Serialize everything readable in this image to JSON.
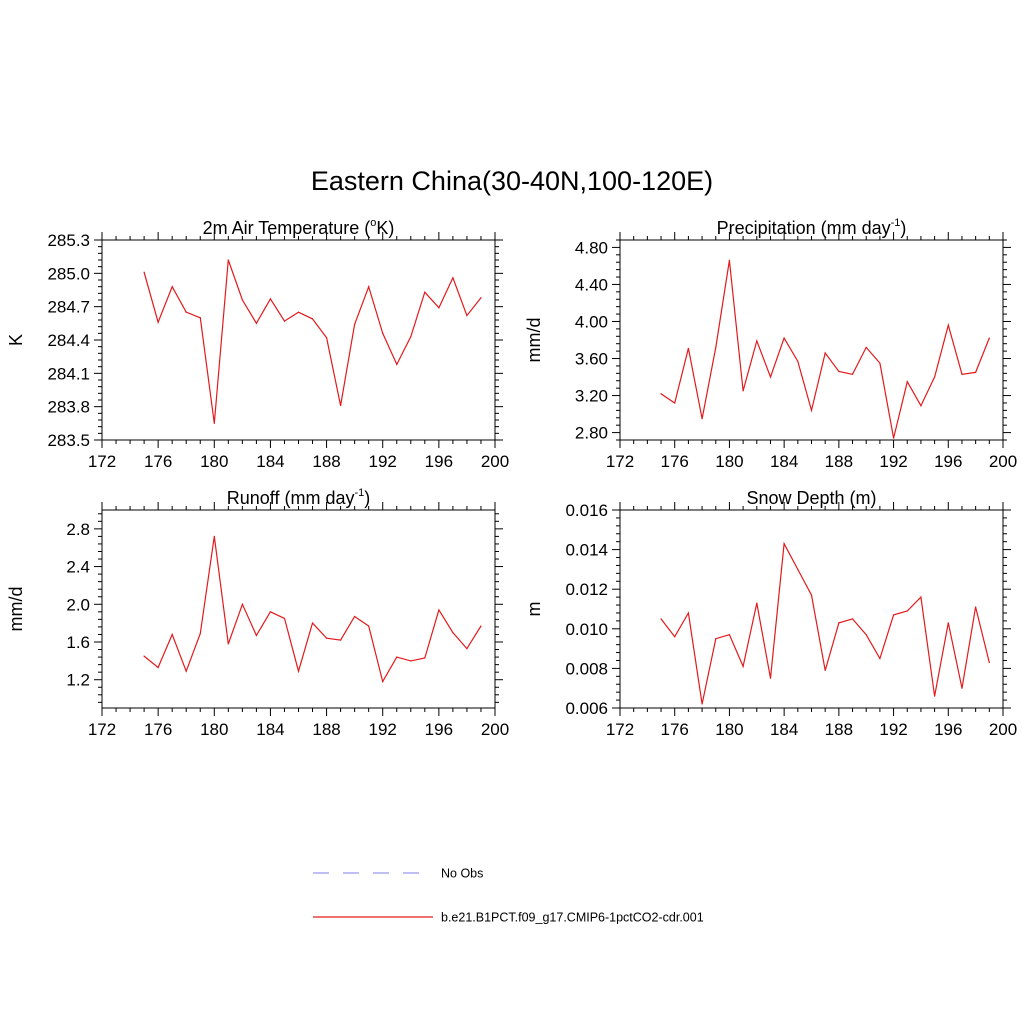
{
  "title": "Eastern China(30-40N,100-120E)",
  "line_color": "#e31a1c",
  "obs_color": "#9999ee",
  "legend": {
    "obs_label": "No Obs",
    "model_label": "b.e21.B1PCT.f09_g17.CMIP6-1pctCO2-cdr.001"
  },
  "chart_data": [
    {
      "type": "line",
      "title": "2m Air Temperature (",
      "title_sup": "o",
      "title_tail": "K)",
      "ylabel": "K",
      "xlim": [
        172,
        200
      ],
      "ylim": [
        283.5,
        285.3
      ],
      "xticks": [
        172,
        176,
        180,
        184,
        188,
        192,
        196,
        200
      ],
      "yticks": [
        "283.5",
        "283.8",
        "284.1",
        "284.4",
        "284.7",
        "285.0",
        "285.3"
      ],
      "x": [
        175,
        176,
        177,
        178,
        179,
        180,
        181,
        182,
        183,
        184,
        185,
        186,
        187,
        188,
        189,
        190,
        191,
        192,
        193,
        194,
        195,
        196,
        197,
        198,
        199
      ],
      "series": [
        {
          "values": [
            285.01,
            284.56,
            284.88,
            284.65,
            284.6,
            283.65,
            285.12,
            284.76,
            284.55,
            284.77,
            284.57,
            284.65,
            284.59,
            284.42,
            283.81,
            284.54,
            284.88,
            284.46,
            284.18,
            284.43,
            284.83,
            284.69,
            284.96,
            284.62,
            284.78
          ]
        }
      ]
    },
    {
      "type": "line",
      "title": "Precipitation (mm day",
      "title_sup": "-1",
      "title_tail": ")",
      "ylabel": "mm/d",
      "xlim": [
        172,
        200
      ],
      "ylim": [
        2.72,
        4.88
      ],
      "xticks": [
        172,
        176,
        180,
        184,
        188,
        192,
        196,
        200
      ],
      "yticks": [
        "2.80",
        "3.20",
        "3.60",
        "4.00",
        "4.40",
        "4.80"
      ],
      "x": [
        175,
        176,
        177,
        178,
        179,
        180,
        181,
        182,
        183,
        184,
        185,
        186,
        187,
        188,
        189,
        190,
        191,
        192,
        193,
        194,
        195,
        196,
        197,
        198,
        199
      ],
      "series": [
        {
          "values": [
            3.22,
            3.12,
            3.71,
            2.95,
            3.72,
            4.66,
            3.25,
            3.79,
            3.4,
            3.82,
            3.57,
            3.04,
            3.66,
            3.46,
            3.43,
            3.72,
            3.55,
            2.74,
            3.35,
            3.09,
            3.4,
            3.96,
            3.43,
            3.45,
            3.82
          ]
        }
      ]
    },
    {
      "type": "line",
      "title": "Runoff (mm day",
      "title_sup": "-1",
      "title_tail": ")",
      "ylabel": "mm/d",
      "xlim": [
        172,
        200
      ],
      "ylim": [
        0.9,
        3.0
      ],
      "xticks": [
        172,
        176,
        180,
        184,
        188,
        192,
        196,
        200
      ],
      "yticks": [
        "1.2",
        "1.6",
        "2.0",
        "2.4",
        "2.8"
      ],
      "x": [
        175,
        176,
        177,
        178,
        179,
        180,
        181,
        182,
        183,
        184,
        185,
        186,
        187,
        188,
        189,
        190,
        191,
        192,
        193,
        194,
        195,
        196,
        197,
        198,
        199
      ],
      "series": [
        {
          "values": [
            1.45,
            1.33,
            1.68,
            1.29,
            1.69,
            2.72,
            1.58,
            2.0,
            1.67,
            1.92,
            1.85,
            1.29,
            1.8,
            1.64,
            1.62,
            1.87,
            1.77,
            1.18,
            1.44,
            1.4,
            1.43,
            1.94,
            1.7,
            1.53,
            1.77
          ]
        }
      ]
    },
    {
      "type": "line",
      "title": "Snow Depth (m)",
      "title_sup": "",
      "title_tail": "",
      "ylabel": "m",
      "xlim": [
        172,
        200
      ],
      "ylim": [
        0.006,
        0.016
      ],
      "xticks": [
        172,
        176,
        180,
        184,
        188,
        192,
        196,
        200
      ],
      "yticks": [
        "0.006",
        "0.008",
        "0.010",
        "0.012",
        "0.014",
        "0.016"
      ],
      "x": [
        175,
        176,
        177,
        178,
        179,
        180,
        181,
        182,
        183,
        184,
        185,
        186,
        187,
        188,
        189,
        190,
        191,
        192,
        193,
        194,
        195,
        196,
        197,
        198,
        199
      ],
      "series": [
        {
          "values": [
            0.0105,
            0.0096,
            0.0108,
            0.0062,
            0.0095,
            0.0097,
            0.0081,
            0.0113,
            0.0075,
            0.0143,
            0.013,
            0.0117,
            0.0079,
            0.0103,
            0.0105,
            0.0097,
            0.0085,
            0.0107,
            0.0109,
            0.0116,
            0.0066,
            0.0103,
            0.007,
            0.0111,
            0.0083
          ]
        }
      ]
    }
  ]
}
